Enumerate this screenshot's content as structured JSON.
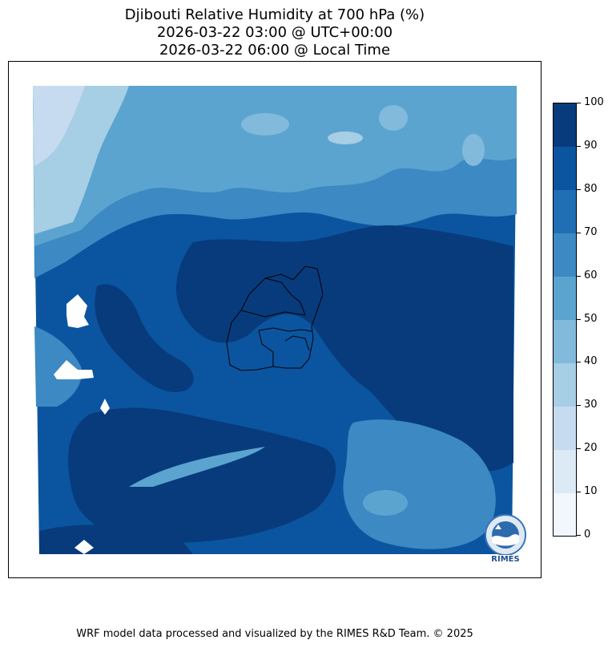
{
  "title": {
    "line1": "Djibouti Relative Humidity at 700 hPa (%)",
    "line2": "2026-03-22 03:00 @ UTC+00:00",
    "line3": "2026-03-22 06:00 @ Local Time"
  },
  "colorbar": {
    "ticks": [
      "0",
      "10",
      "20",
      "30",
      "40",
      "50",
      "60",
      "70",
      "80",
      "90",
      "100"
    ],
    "colors": [
      "#f1f7fd",
      "#dceaf6",
      "#c6dbef",
      "#a6cee4",
      "#81badb",
      "#5ca4d0",
      "#3c89c3",
      "#206fb4",
      "#0b55a0",
      "#083b7c"
    ]
  },
  "logo": {
    "text": "RIMES"
  },
  "footer": {
    "credit": "WRF model data processed and visualized by the RIMES R&D Team. © 2025"
  }
}
